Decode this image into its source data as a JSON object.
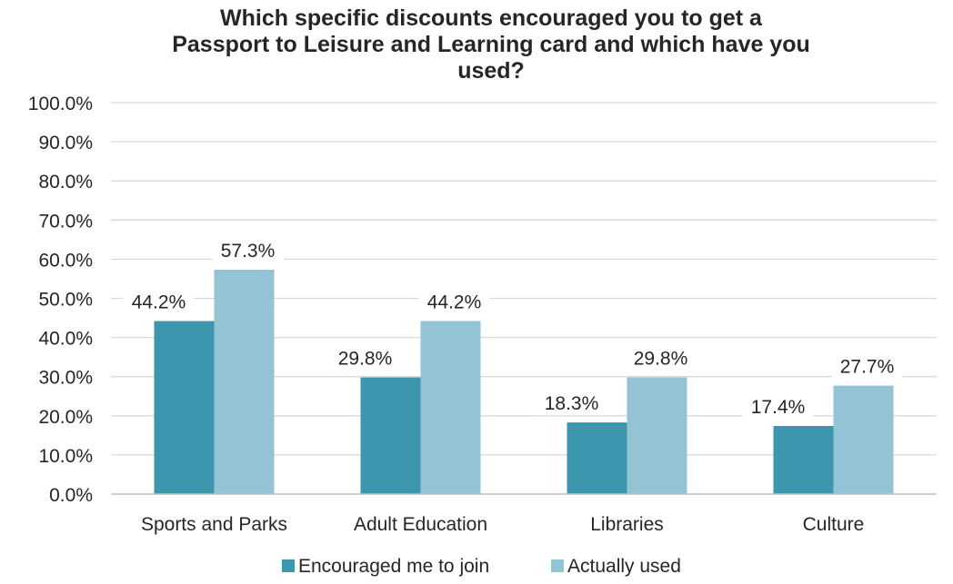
{
  "chart_data": {
    "type": "bar",
    "title_lines": [
      "Which specific discounts encouraged you to get a",
      "Passport to Leisure and Learning card and which have you",
      "used?"
    ],
    "categories": [
      "Sports and Parks",
      "Adult Education",
      "Libraries",
      "Culture"
    ],
    "series": [
      {
        "name": "Encouraged me to join",
        "color": "#3c96ad",
        "values": [
          44.2,
          29.8,
          18.3,
          17.4
        ],
        "labels": [
          "44.2%",
          "29.8%",
          "18.3%",
          "17.4%"
        ]
      },
      {
        "name": "Actually used",
        "color": "#93c4d6",
        "values": [
          57.3,
          44.2,
          29.8,
          27.7
        ],
        "labels": [
          "57.3%",
          "44.2%",
          "29.8%",
          "27.7%"
        ]
      }
    ],
    "ylim": [
      0,
      100
    ],
    "yticks": [
      "0.0%",
      "10.0%",
      "20.0%",
      "30.0%",
      "40.0%",
      "50.0%",
      "60.0%",
      "70.0%",
      "80.0%",
      "90.0%",
      "100.0%"
    ],
    "grid": true,
    "legend_position": "bottom"
  }
}
